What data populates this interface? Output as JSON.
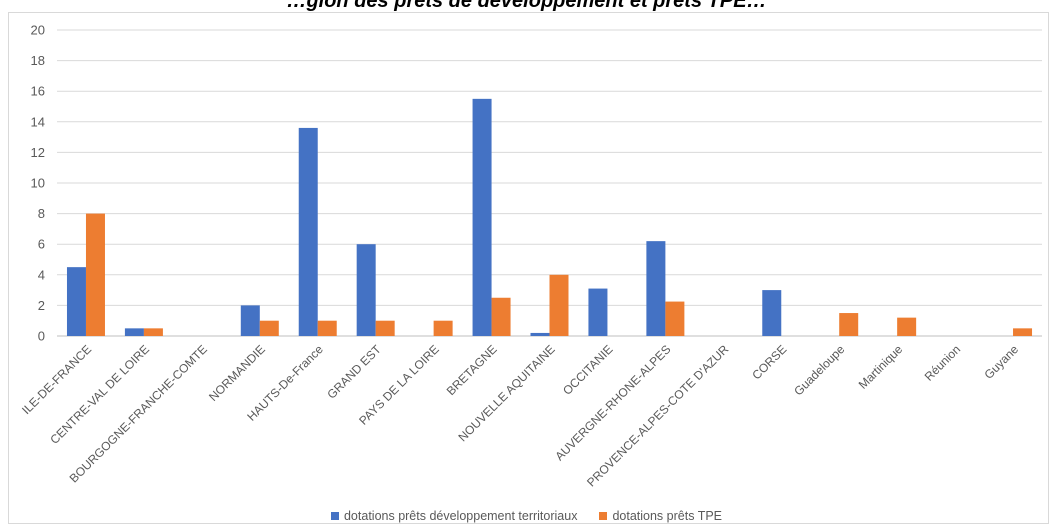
{
  "chart_data": {
    "type": "bar",
    "title": "…gion des prêts de développement et prêts TPE…",
    "categories": [
      "ILE-DE-FRANCE",
      "CENTRE-VAL DE LOIRE",
      "BOURGOGNE-FRANCHE-COMTE",
      "NORMANDIE",
      "HAUTS-De-France",
      "GRAND EST",
      "PAYS DE LA LOIRE",
      "BRETAGNE",
      "NOUVELLE AQUITAINE",
      "OCCITANIE",
      "AUVERGNE-RHONE-ALPES",
      "PROVENCE-ALPES-COTE D'AZUR",
      "CORSE",
      "Guadeloupe",
      "Martinique",
      "Réunion",
      "Guyane"
    ],
    "series": [
      {
        "name": "dotations prêts développement territoriaux",
        "color": "#4472c4",
        "values": [
          4.5,
          0.5,
          0,
          2,
          13.6,
          6,
          0,
          15.5,
          0.2,
          3.1,
          6.2,
          0,
          3,
          0,
          0,
          0,
          0
        ]
      },
      {
        "name": "dotations prêts TPE",
        "color": "#ed7d31",
        "values": [
          8,
          0.5,
          0,
          1,
          1,
          1,
          1,
          2.5,
          4,
          0,
          2.25,
          0,
          0,
          1.5,
          1.2,
          0,
          0.5
        ]
      }
    ],
    "ylim": [
      0,
      20
    ],
    "yticks": [
      0,
      2,
      4,
      6,
      8,
      10,
      12,
      14,
      16,
      18,
      20
    ],
    "grid": true,
    "legend_position": "bottom"
  }
}
